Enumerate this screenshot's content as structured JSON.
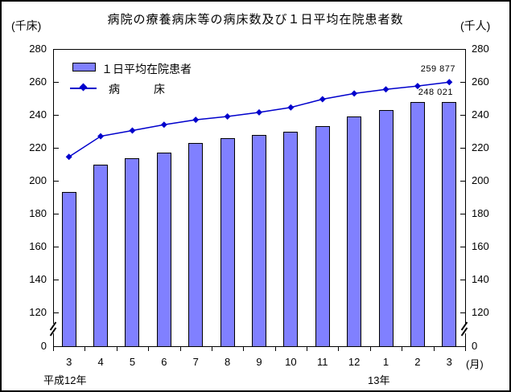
{
  "title": "病院の療養病床等の病床数及び１日平均在院患者数",
  "axes": {
    "left_unit": "(千床)",
    "right_unit": "(千人)",
    "yticks": [
      280,
      260,
      240,
      220,
      200,
      180,
      160,
      140,
      120,
      0
    ]
  },
  "legend": {
    "bar_label": "１日平均在院患者",
    "line_label": "病　　　床"
  },
  "annotations": {
    "line_value": "259 877",
    "bar_value": "248 021"
  },
  "footer": {
    "month_unit": "(月)",
    "year_left": "平成12年",
    "year_right": "13年"
  },
  "colors": {
    "bar_fill": "#8080ff",
    "bar_border": "#000000",
    "line": "#0000cc"
  },
  "chart_data": {
    "type": "bar+line",
    "title": "病院の療養病床等の病床数及び１日平均在院患者数",
    "categories": [
      "3",
      "4",
      "5",
      "6",
      "7",
      "8",
      "9",
      "10",
      "11",
      "12",
      "1",
      "2",
      "3"
    ],
    "x_year_groups": [
      {
        "label": "平成12年",
        "starts_at_month": "3"
      },
      {
        "label": "13年",
        "starts_at_month": "1"
      }
    ],
    "series": [
      {
        "name": "１日平均在院患者",
        "type": "bar",
        "axis": "right",
        "unit": "千人",
        "values": [
          193,
          210,
          213.5,
          217,
          223,
          226,
          228,
          230,
          233,
          239,
          243,
          248,
          248.021
        ],
        "last_value_label": "248 021"
      },
      {
        "name": "病床",
        "type": "line",
        "marker": "diamond",
        "axis": "left",
        "unit": "千床",
        "values": [
          214.5,
          227,
          230.5,
          234,
          237,
          239,
          241.5,
          244.5,
          249.5,
          253,
          255.5,
          257.5,
          259.877
        ],
        "last_value_label": "259 877"
      }
    ],
    "ylim": [
      120,
      280
    ],
    "yticks": [
      280,
      260,
      240,
      220,
      200,
      180,
      160,
      140,
      120,
      0
    ],
    "axis_break_between": [
      0,
      120
    ],
    "grid": false,
    "legend_position": "top-left-inside"
  }
}
